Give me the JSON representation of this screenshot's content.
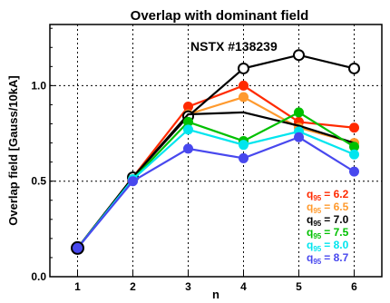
{
  "chart_data": {
    "type": "line",
    "title": "Overlap with dominant field",
    "annotation": "NSTX #138239",
    "xlabel": "n",
    "ylabel": "Overlap field [Gauss/10kA]",
    "x": [
      1,
      2,
      3,
      4,
      5,
      6
    ],
    "xlim": [
      0.5,
      6.5
    ],
    "ylim": [
      0.0,
      1.32
    ],
    "xticks": [
      "1",
      "2",
      "3",
      "4",
      "5",
      "6"
    ],
    "yticks": [
      {
        "value": 0.0,
        "label": "0.0"
      },
      {
        "value": 0.5,
        "label": "0.5"
      },
      {
        "value": 1.0,
        "label": "1.0"
      }
    ],
    "grid": true,
    "legend_position": "bottom-right",
    "legend_symbol": "q",
    "legend_subscript": "95",
    "series": [
      {
        "q95": "6.2",
        "color": "#ff2a00",
        "marker": "filled",
        "values": [
          0.15,
          0.52,
          0.89,
          1.0,
          0.81,
          0.78
        ]
      },
      {
        "q95": "6.5",
        "color": "#ff9a2e",
        "marker": "filled",
        "values": [
          0.15,
          0.52,
          0.85,
          0.94,
          0.78,
          0.7
        ]
      },
      {
        "q95": "7.0",
        "color": "#000000",
        "marker": "open",
        "values": [
          0.15,
          0.52,
          0.84,
          1.09,
          1.16,
          1.09
        ]
      },
      {
        "q95": "7.0",
        "color": "#000000",
        "marker": "none",
        "values": [
          0.15,
          0.52,
          0.85,
          0.86,
          0.79,
          0.7
        ]
      },
      {
        "q95": "7.5",
        "color": "#00c000",
        "marker": "filled",
        "values": [
          0.15,
          0.51,
          0.81,
          0.71,
          0.86,
          0.68
        ]
      },
      {
        "q95": "8.0",
        "color": "#00e5ee",
        "marker": "filled",
        "values": [
          0.15,
          0.51,
          0.77,
          0.69,
          0.76,
          0.64
        ]
      },
      {
        "q95": "8.7",
        "color": "#4848ee",
        "marker": "filled",
        "values": [
          0.15,
          0.5,
          0.67,
          0.62,
          0.73,
          0.55
        ]
      }
    ],
    "legend": [
      {
        "label": "= 6.2",
        "color": "#ff2a00"
      },
      {
        "label": "= 6.5",
        "color": "#ff9a2e"
      },
      {
        "label": "= 7.0",
        "color": "#000000"
      },
      {
        "label": "= 7.5",
        "color": "#00c000"
      },
      {
        "label": "= 8.0",
        "color": "#00e5ee"
      },
      {
        "label": "= 8.7",
        "color": "#4848ee"
      }
    ]
  }
}
